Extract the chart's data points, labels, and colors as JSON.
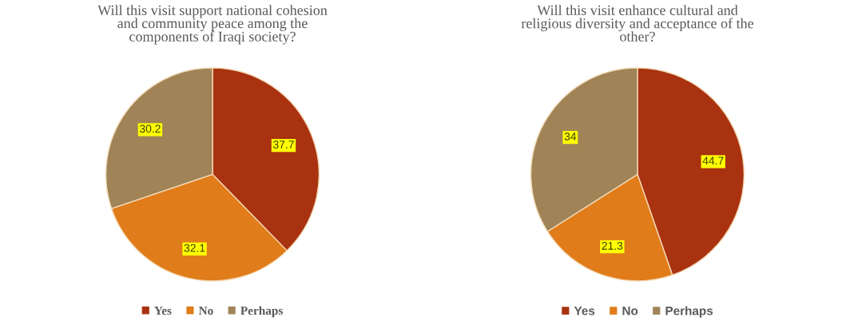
{
  "chart_data": [
    {
      "type": "pie",
      "title": "Will this visit support national cohesion\nand community peace among the\ncomponents of Iraqi society?",
      "categories": [
        "Yes",
        "No",
        "Perhaps"
      ],
      "values": [
        37.7,
        32.1,
        30.2
      ],
      "colors": [
        "#a93210",
        "#e07c1a",
        "#a08457"
      ],
      "data_labels": true,
      "legend": "bottom"
    },
    {
      "type": "pie",
      "title": "Will this visit enhance cultural and\nreligious diversity and acceptance of the\nother?",
      "categories": [
        "Yes",
        "No",
        "Perhaps"
      ],
      "values": [
        44.7,
        21.3,
        34
      ],
      "colors": [
        "#a93210",
        "#e07c1a",
        "#a08457"
      ],
      "data_labels": true,
      "legend": "bottom"
    }
  ]
}
